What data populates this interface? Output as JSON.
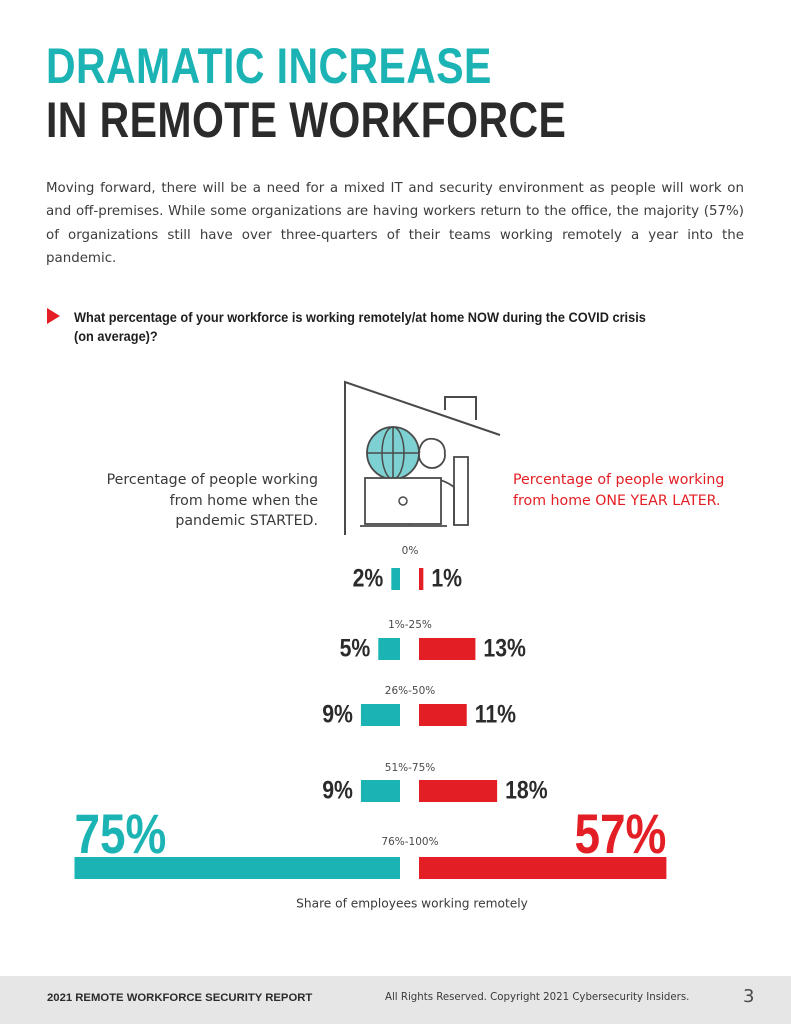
{
  "title": {
    "line1": "DRAMATIC INCREASE",
    "line2": "IN REMOTE WORKFORCE"
  },
  "intro": "Moving forward, there will be a need for a mixed IT and security environment as people will work on and off-premises. While some organizations are having workers return to the office, the majority (57%) of organizations still have over three-quarters of their teams working remotely a year into the pandemic.",
  "question": "What percentage of your workforce is working remotely/at home NOW during the COVID crisis (on average)?",
  "legend": {
    "left": "Percentage of people working from home when the pandemic STARTED.",
    "right": "Percentage of people working from home ONE YEAR LATER."
  },
  "colors": {
    "teal": "#1bb3b4",
    "red": "#e31e24",
    "dark": "#2b2b2b"
  },
  "chart_data": {
    "type": "bar",
    "orientation": "horizontal-diverging",
    "categories": [
      "0%",
      "1%-25%",
      "26%-50%",
      "51%-75%",
      "76%-100%"
    ],
    "series": [
      {
        "name": "Percentage of people working from home when the pandemic STARTED.",
        "values": [
          2,
          5,
          9,
          9,
          75
        ],
        "labels": [
          "2%",
          "5%",
          "9%",
          "9%",
          "75%"
        ]
      },
      {
        "name": "Percentage of people working from home ONE YEAR LATER.",
        "values": [
          1,
          13,
          11,
          18,
          57
        ],
        "labels": [
          "1%",
          "13%",
          "11%",
          "18%",
          "57%"
        ]
      }
    ],
    "xlabel": "Share of employees working remotely"
  },
  "footer": {
    "report": "2021 REMOTE WORKFORCE SECURITY REPORT",
    "copyright": "All Rights Reserved. Copyright 2021 Cybersecurity Insiders.",
    "page": "3"
  }
}
